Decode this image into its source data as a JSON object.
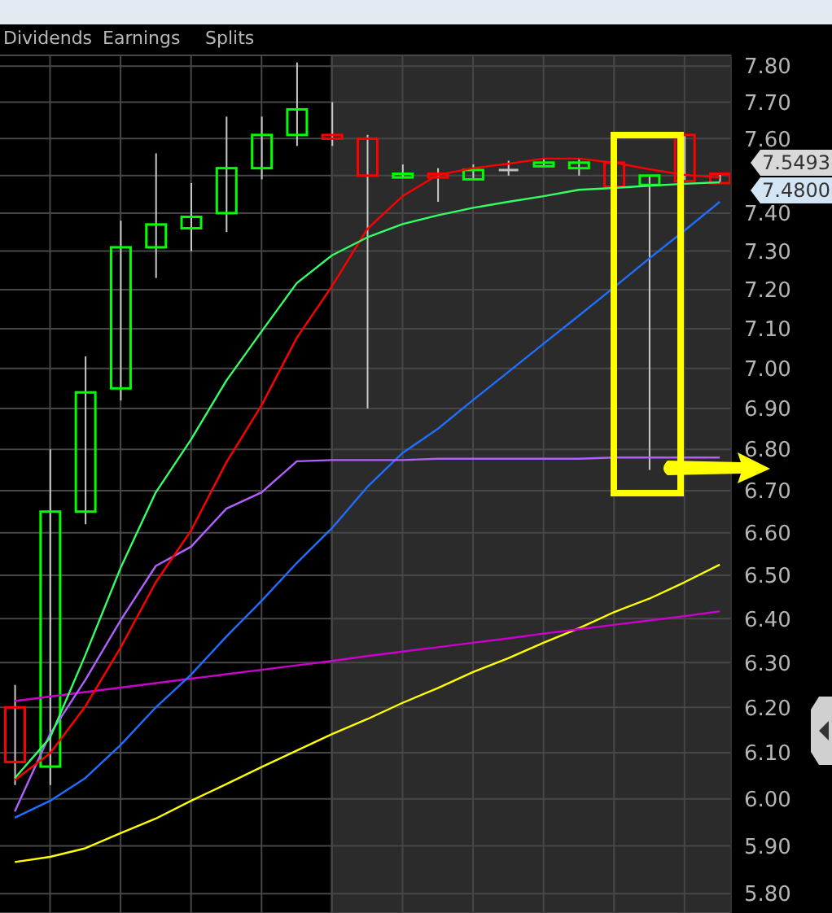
{
  "chart_data": {
    "type": "candlestick",
    "categories": [
      null,
      null,
      null,
      null,
      null,
      null,
      null,
      null,
      null,
      null,
      null,
      null,
      null,
      null,
      null,
      null,
      null,
      null,
      null,
      null,
      null
    ],
    "ohlc": [
      [
        6.2,
        6.25,
        6.03,
        6.08
      ],
      [
        6.07,
        6.8,
        6.03,
        6.65
      ],
      [
        6.65,
        7.03,
        6.62,
        6.94
      ],
      [
        6.95,
        7.38,
        6.92,
        7.31
      ],
      [
        7.31,
        7.56,
        7.23,
        7.37
      ],
      [
        7.36,
        7.48,
        7.3,
        7.39
      ],
      [
        7.4,
        7.66,
        7.35,
        7.52
      ],
      [
        7.52,
        7.66,
        7.49,
        7.61
      ],
      [
        7.61,
        7.81,
        7.58,
        7.68
      ],
      [
        7.61,
        7.7,
        7.58,
        7.6
      ],
      [
        7.6,
        7.61,
        6.9,
        7.5
      ],
      [
        7.495,
        7.53,
        7.495,
        7.505
      ],
      [
        7.505,
        7.52,
        7.43,
        7.495
      ],
      [
        7.49,
        7.53,
        7.49,
        7.515
      ],
      [
        7.515,
        7.54,
        7.5,
        7.515
      ],
      [
        7.525,
        7.545,
        7.525,
        7.535
      ],
      [
        7.52,
        7.545,
        7.5,
        7.535
      ],
      [
        7.535,
        7.535,
        7.47,
        7.47
      ],
      [
        7.475,
        7.5,
        6.75,
        7.5
      ],
      [
        7.61,
        7.61,
        7.485,
        7.485
      ],
      [
        7.505,
        7.505,
        7.48,
        7.48
      ]
    ],
    "colors": [
      "#ff0000",
      "#00ff00",
      "#00ff00",
      "#00ff00",
      "#00ff00",
      "#00ff00",
      "#00ff00",
      "#00ff00",
      "#00ff00",
      "#ff0000",
      "#ff0000",
      "#00ff00",
      "#ff0000",
      "#00ff00",
      "#c0c0c0",
      "#00ff00",
      "#00ff00",
      "#ff0000",
      "#00ff00",
      "#ff0000",
      "#ff0000"
    ],
    "series": [
      {
        "type": "line",
        "color": "#ffff00",
        "values": [
          5.866,
          5.877,
          5.895,
          5.927,
          5.958,
          5.996,
          6.032,
          6.069,
          6.105,
          6.141,
          6.174,
          6.21,
          6.243,
          6.279,
          6.31,
          6.345,
          6.378,
          6.415,
          6.446,
          6.484,
          6.525
        ]
      },
      {
        "type": "line",
        "color": "#cc00cc",
        "values": [
          6.214,
          6.224,
          6.234,
          6.244,
          6.254,
          6.264,
          6.274,
          6.284,
          6.294,
          6.304,
          6.315,
          6.325,
          6.335,
          6.345,
          6.355,
          6.366,
          6.376,
          6.386,
          6.396,
          6.406,
          6.417
        ]
      },
      {
        "type": "line",
        "color": "#1f6fff",
        "values": [
          5.96,
          5.996,
          6.045,
          6.117,
          6.2,
          6.273,
          6.359,
          6.441,
          6.529,
          6.611,
          6.709,
          6.791,
          6.85,
          6.921,
          6.991,
          7.062,
          7.133,
          7.206,
          7.281,
          7.354,
          7.43
        ]
      },
      {
        "type": "line",
        "color": "#b060ff",
        "values": [
          5.973,
          6.141,
          6.261,
          6.396,
          6.522,
          6.567,
          6.657,
          6.696,
          6.771,
          6.774,
          6.774,
          6.774,
          6.777,
          6.777,
          6.777,
          6.777,
          6.777,
          6.78,
          6.78,
          6.78,
          6.78
        ]
      },
      {
        "type": "line",
        "color": "#ff0000",
        "values": [
          6.041,
          6.099,
          6.202,
          6.334,
          6.484,
          6.605,
          6.768,
          6.908,
          7.077,
          7.209,
          7.358,
          7.445,
          7.502,
          7.52,
          7.532,
          7.546,
          7.546,
          7.535,
          7.517,
          7.502,
          7.495
        ]
      },
      {
        "type": "line",
        "color": "#33ff66",
        "values": [
          6.045,
          6.133,
          6.317,
          6.517,
          6.696,
          6.824,
          6.969,
          7.093,
          7.217,
          7.289,
          7.336,
          7.371,
          7.394,
          7.414,
          7.43,
          7.445,
          7.462,
          7.467,
          7.473,
          7.478,
          7.482
        ]
      }
    ],
    "ylim": [
      5.76,
      7.83
    ],
    "yticks": [
      {
        "value": 5.8,
        "label": "5.80"
      },
      {
        "value": 5.9,
        "label": "5.90"
      },
      {
        "value": 6.0,
        "label": "6.00"
      },
      {
        "value": 6.1,
        "label": "6.10"
      },
      {
        "value": 6.2,
        "label": "6.20"
      },
      {
        "value": 6.3,
        "label": "6.30"
      },
      {
        "value": 6.4,
        "label": "6.40"
      },
      {
        "value": 6.5,
        "label": "6.50"
      },
      {
        "value": 6.6,
        "label": "6.60"
      },
      {
        "value": 6.7,
        "label": "6.70"
      },
      {
        "value": 6.8,
        "label": "6.80"
      },
      {
        "value": 6.9,
        "label": "6.90"
      },
      {
        "value": 7.0,
        "label": "7.00"
      },
      {
        "value": 7.1,
        "label": "7.10"
      },
      {
        "value": 7.2,
        "label": "7.20"
      },
      {
        "value": 7.3,
        "label": "7.30"
      },
      {
        "value": 7.4,
        "label": "7.40"
      },
      {
        "value": 7.5,
        "label": null
      },
      {
        "value": 7.6,
        "label": "7.60"
      },
      {
        "value": 7.7,
        "label": "7.70"
      },
      {
        "value": 7.8,
        "label": "7.80"
      }
    ],
    "log": "y",
    "grid": true,
    "tick_labels": "y",
    "annotations": [
      "Dividends",
      "Earnings",
      "Splits",
      "7.5493",
      "7.4800"
    ]
  }
}
